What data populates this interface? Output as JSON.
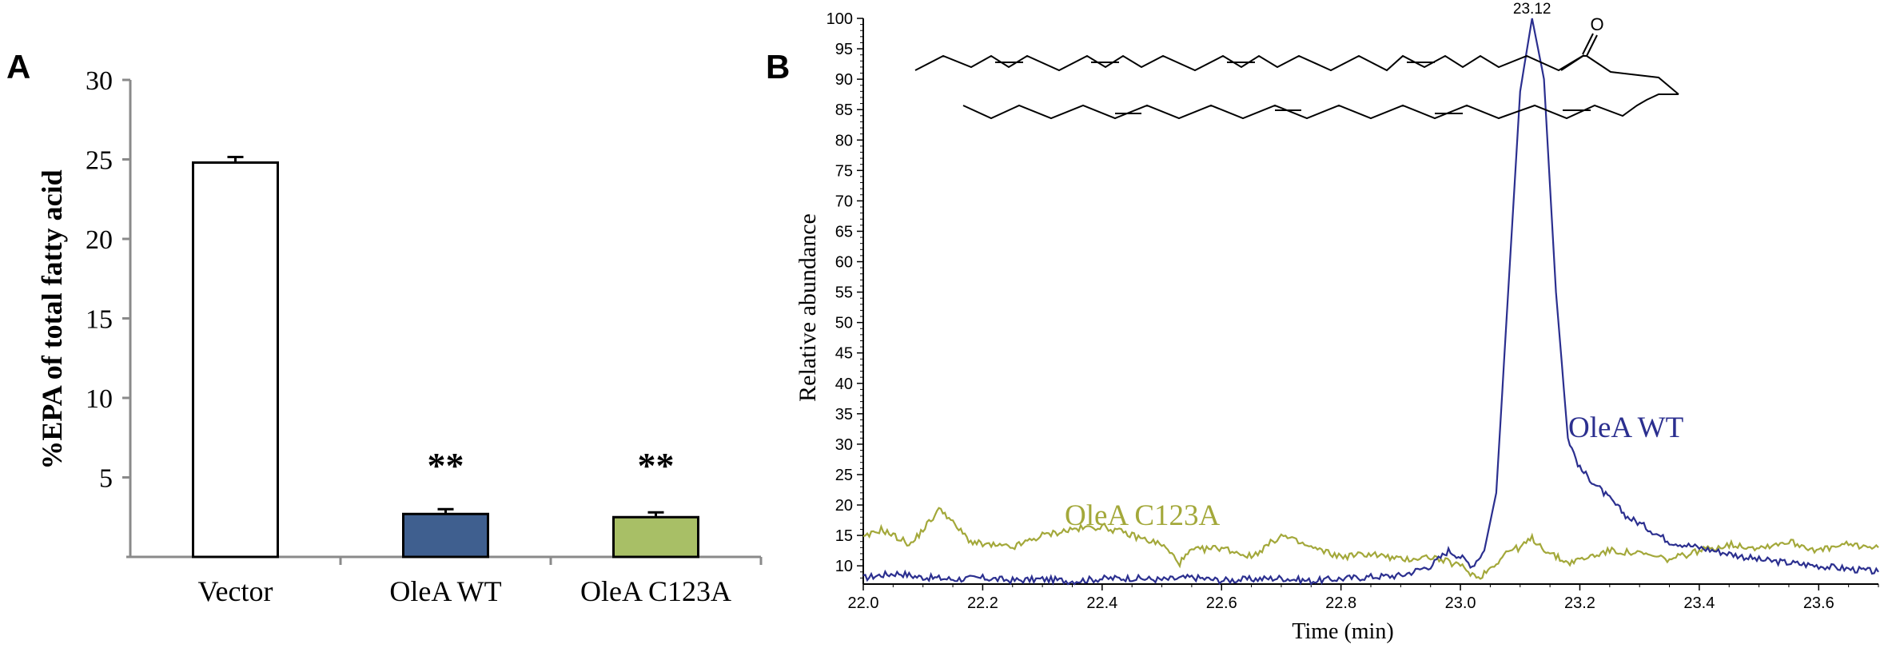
{
  "panel_a_label": "A",
  "panel_b_label": "B",
  "chart_data": [
    {
      "type": "bar",
      "panel": "A",
      "ylabel": "%EPA of total fatty acid",
      "xlabel": "",
      "ylim": [
        0,
        30
      ],
      "yticks": [
        5,
        10,
        15,
        20,
        25,
        30
      ],
      "categories": [
        "Vector",
        "OleA WT",
        "OleA C123A"
      ],
      "values": [
        24.8,
        2.7,
        2.5
      ],
      "errors": [
        0.35,
        0.3,
        0.3
      ],
      "colors": [
        "#ffffff",
        "#3f5f8f",
        "#a8bf66"
      ],
      "annotations": [
        "",
        "**",
        "**"
      ]
    },
    {
      "type": "line",
      "panel": "B",
      "xlabel": "Time (min)",
      "ylabel": "Relative abundance",
      "xlim": [
        22.0,
        23.7
      ],
      "ylim": [
        7,
        100
      ],
      "xticks": [
        "22.0",
        "22.2",
        "22.4",
        "22.6",
        "22.8",
        "23.0",
        "23.2",
        "23.4",
        "23.6"
      ],
      "yticks": [
        10,
        15,
        20,
        25,
        30,
        35,
        40,
        45,
        50,
        55,
        60,
        65,
        70,
        75,
        80,
        85,
        90,
        95,
        100
      ],
      "peak_label": "23.12",
      "structure_label": "O",
      "series": [
        {
          "name": "OleA WT",
          "color": "#2b2f8f",
          "x": [
            22.0,
            22.03,
            22.06,
            22.09,
            22.12,
            22.15,
            22.2,
            22.25,
            22.3,
            22.35,
            22.4,
            22.45,
            22.5,
            22.55,
            22.6,
            22.65,
            22.7,
            22.75,
            22.8,
            22.85,
            22.9,
            22.95,
            22.98,
            23.0,
            23.02,
            23.04,
            23.06,
            23.08,
            23.1,
            23.12,
            23.14,
            23.16,
            23.18,
            23.2,
            23.22,
            23.25,
            23.28,
            23.3,
            23.35,
            23.4,
            23.45,
            23.5,
            23.55,
            23.6,
            23.65,
            23.7
          ],
          "y": [
            8.0,
            8.5,
            8.8,
            8.2,
            8.0,
            7.8,
            8.0,
            7.6,
            7.8,
            7.5,
            7.9,
            8.0,
            7.7,
            8.1,
            7.6,
            7.8,
            8.0,
            7.5,
            7.9,
            8.2,
            8.4,
            10.0,
            12.5,
            11.5,
            10.0,
            12.5,
            22.0,
            55.0,
            88.0,
            100.0,
            90.0,
            55.0,
            31.0,
            26.0,
            24.0,
            21.0,
            18.0,
            17.0,
            14.0,
            13.0,
            12.0,
            11.0,
            10.5,
            10.0,
            9.5,
            9.0
          ]
        },
        {
          "name": "OleA C123A",
          "color": "#a3a83a",
          "x": [
            22.0,
            22.03,
            22.05,
            22.08,
            22.1,
            22.13,
            22.15,
            22.18,
            22.2,
            22.25,
            22.3,
            22.35,
            22.4,
            22.45,
            22.5,
            22.53,
            22.55,
            22.6,
            22.65,
            22.7,
            22.75,
            22.8,
            22.85,
            22.9,
            22.95,
            23.0,
            23.03,
            23.06,
            23.08,
            23.1,
            23.12,
            23.15,
            23.18,
            23.2,
            23.25,
            23.3,
            23.35,
            23.4,
            23.45,
            23.5,
            23.55,
            23.6,
            23.65,
            23.7
          ],
          "y": [
            14.5,
            16.0,
            15.0,
            13.5,
            16.0,
            19.5,
            17.0,
            14.0,
            13.5,
            13.0,
            15.0,
            16.0,
            16.5,
            15.0,
            13.5,
            10.5,
            12.5,
            13.0,
            11.5,
            15.0,
            13.0,
            11.5,
            12.0,
            11.0,
            11.5,
            10.0,
            8.0,
            10.5,
            12.5,
            13.0,
            14.5,
            12.0,
            10.5,
            11.0,
            12.5,
            12.0,
            11.0,
            12.5,
            13.5,
            13.0,
            14.0,
            12.5,
            13.5,
            13.0
          ]
        }
      ]
    }
  ]
}
